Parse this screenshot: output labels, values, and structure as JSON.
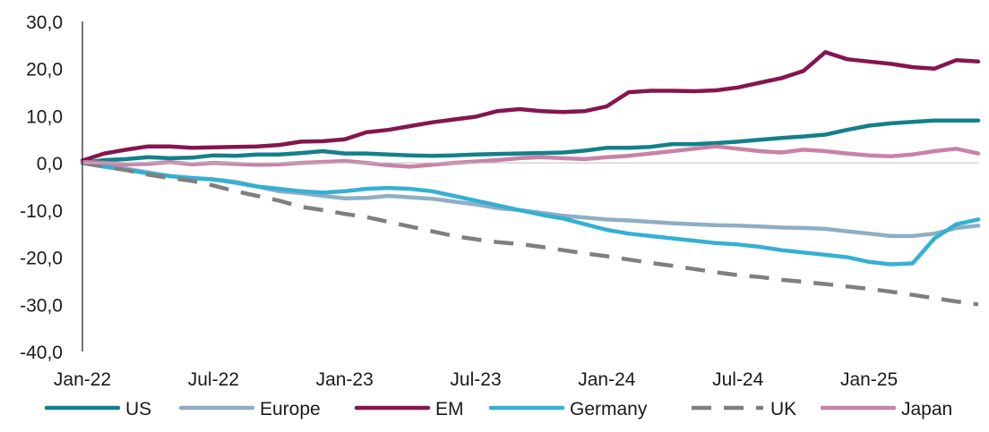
{
  "chart_data": {
    "type": "line",
    "title": "",
    "xlabel": "",
    "ylabel": "",
    "ylim": [
      -40,
      30
    ],
    "yticks": [
      30,
      20,
      10,
      0,
      -10,
      -20,
      -30,
      -40
    ],
    "ytick_labels": [
      "30,0",
      "20,0",
      "10,0",
      "0,0",
      "-10,0",
      "-20,0",
      "-30,0",
      "-40,0"
    ],
    "xlim": [
      0,
      41
    ],
    "xticks": [
      0,
      6,
      12,
      18,
      24,
      30,
      36
    ],
    "xtick_labels": [
      "Jan-22",
      "Jul-22",
      "Jan-23",
      "Jul-23",
      "Jan-24",
      "Jul-24",
      "Jan-25"
    ],
    "legend_position": "bottom",
    "series": [
      {
        "name": "US",
        "color": "#13808a",
        "dash": "solid",
        "points": [
          [
            0,
            0
          ],
          [
            1,
            0.6
          ],
          [
            2,
            0.8
          ],
          [
            3,
            1.2
          ],
          [
            4,
            1.0
          ],
          [
            5,
            1.1
          ],
          [
            6,
            1.6
          ],
          [
            7,
            1.5
          ],
          [
            8,
            1.8
          ],
          [
            9,
            1.8
          ],
          [
            10,
            2.1
          ],
          [
            11,
            2.5
          ],
          [
            12,
            2.0
          ],
          [
            13,
            2.0
          ],
          [
            14,
            1.8
          ],
          [
            15,
            1.6
          ],
          [
            16,
            1.5
          ],
          [
            17,
            1.6
          ],
          [
            18,
            1.8
          ],
          [
            19,
            1.9
          ],
          [
            20,
            2.0
          ],
          [
            21,
            2.1
          ],
          [
            22,
            2.2
          ],
          [
            23,
            2.6
          ],
          [
            24,
            3.2
          ],
          [
            25,
            3.2
          ],
          [
            26,
            3.4
          ],
          [
            27,
            4.0
          ],
          [
            28,
            4.0
          ],
          [
            29,
            4.2
          ],
          [
            30,
            4.5
          ],
          [
            31,
            4.9
          ],
          [
            32,
            5.3
          ],
          [
            33,
            5.6
          ],
          [
            34,
            6.0
          ],
          [
            35,
            7.0
          ],
          [
            36,
            7.9
          ],
          [
            37,
            8.4
          ],
          [
            38,
            8.7
          ],
          [
            39,
            9.0
          ],
          [
            40,
            9.0
          ],
          [
            41,
            9.0
          ]
        ]
      },
      {
        "name": "Europe",
        "color": "#8eaec5",
        "dash": "solid",
        "points": [
          [
            0,
            0
          ],
          [
            1,
            -0.5
          ],
          [
            2,
            -1.2
          ],
          [
            3,
            -2.0
          ],
          [
            4,
            -2.8
          ],
          [
            5,
            -3.2
          ],
          [
            6,
            -3.5
          ],
          [
            7,
            -4.0
          ],
          [
            8,
            -5.0
          ],
          [
            9,
            -6.0
          ],
          [
            10,
            -6.4
          ],
          [
            11,
            -7.0
          ],
          [
            12,
            -7.5
          ],
          [
            13,
            -7.4
          ],
          [
            14,
            -7.0
          ],
          [
            15,
            -7.3
          ],
          [
            16,
            -7.6
          ],
          [
            17,
            -8.2
          ],
          [
            18,
            -8.8
          ],
          [
            19,
            -9.6
          ],
          [
            20,
            -10.0
          ],
          [
            21,
            -10.6
          ],
          [
            22,
            -11.2
          ],
          [
            23,
            -11.6
          ],
          [
            24,
            -12.0
          ],
          [
            25,
            -12.2
          ],
          [
            26,
            -12.5
          ],
          [
            27,
            -12.8
          ],
          [
            28,
            -13.0
          ],
          [
            29,
            -13.2
          ],
          [
            30,
            -13.3
          ],
          [
            31,
            -13.5
          ],
          [
            32,
            -13.7
          ],
          [
            33,
            -13.8
          ],
          [
            34,
            -14.0
          ],
          [
            35,
            -14.5
          ],
          [
            36,
            -15.0
          ],
          [
            37,
            -15.5
          ],
          [
            38,
            -15.5
          ],
          [
            39,
            -15.0
          ],
          [
            40,
            -13.8
          ],
          [
            41,
            -13.3
          ]
        ]
      },
      {
        "name": "EM",
        "color": "#86154f",
        "dash": "solid",
        "points": [
          [
            0,
            0.5
          ],
          [
            1,
            2.0
          ],
          [
            2,
            2.8
          ],
          [
            3,
            3.5
          ],
          [
            4,
            3.5
          ],
          [
            5,
            3.2
          ],
          [
            6,
            3.3
          ],
          [
            7,
            3.4
          ],
          [
            8,
            3.5
          ],
          [
            9,
            3.8
          ],
          [
            10,
            4.5
          ],
          [
            11,
            4.6
          ],
          [
            12,
            5.0
          ],
          [
            13,
            6.5
          ],
          [
            14,
            7.0
          ],
          [
            15,
            7.8
          ],
          [
            16,
            8.6
          ],
          [
            17,
            9.2
          ],
          [
            18,
            9.8
          ],
          [
            19,
            11.0
          ],
          [
            20,
            11.4
          ],
          [
            21,
            11.0
          ],
          [
            22,
            10.8
          ],
          [
            23,
            11.0
          ],
          [
            24,
            12.0
          ],
          [
            25,
            15.0
          ],
          [
            26,
            15.3
          ],
          [
            27,
            15.3
          ],
          [
            28,
            15.2
          ],
          [
            29,
            15.4
          ],
          [
            30,
            16.0
          ],
          [
            31,
            17.0
          ],
          [
            32,
            18.0
          ],
          [
            33,
            19.5
          ],
          [
            34,
            23.5
          ],
          [
            35,
            22.0
          ],
          [
            36,
            21.5
          ],
          [
            37,
            21.0
          ],
          [
            38,
            20.3
          ],
          [
            39,
            20.0
          ],
          [
            40,
            21.8
          ],
          [
            41,
            21.5
          ]
        ]
      },
      {
        "name": "Germany",
        "color": "#34b0d2",
        "dash": "solid",
        "points": [
          [
            0,
            0
          ],
          [
            1,
            -0.8
          ],
          [
            2,
            -1.5
          ],
          [
            3,
            -2.2
          ],
          [
            4,
            -2.8
          ],
          [
            5,
            -3.2
          ],
          [
            6,
            -3.5
          ],
          [
            7,
            -4.2
          ],
          [
            8,
            -5.0
          ],
          [
            9,
            -5.5
          ],
          [
            10,
            -6.0
          ],
          [
            11,
            -6.3
          ],
          [
            12,
            -6.0
          ],
          [
            13,
            -5.5
          ],
          [
            14,
            -5.3
          ],
          [
            15,
            -5.5
          ],
          [
            16,
            -6.0
          ],
          [
            17,
            -7.0
          ],
          [
            18,
            -8.0
          ],
          [
            19,
            -9.0
          ],
          [
            20,
            -10.0
          ],
          [
            21,
            -11.0
          ],
          [
            22,
            -11.8
          ],
          [
            23,
            -13.0
          ],
          [
            24,
            -14.2
          ],
          [
            25,
            -15.0
          ],
          [
            26,
            -15.5
          ],
          [
            27,
            -16.0
          ],
          [
            28,
            -16.5
          ],
          [
            29,
            -17.0
          ],
          [
            30,
            -17.3
          ],
          [
            31,
            -17.8
          ],
          [
            32,
            -18.5
          ],
          [
            33,
            -19.0
          ],
          [
            34,
            -19.5
          ],
          [
            35,
            -20.0
          ],
          [
            36,
            -21.0
          ],
          [
            37,
            -21.5
          ],
          [
            38,
            -21.3
          ],
          [
            39,
            -16.0
          ],
          [
            40,
            -13.0
          ],
          [
            41,
            -12.0
          ]
        ]
      },
      {
        "name": "UK",
        "color": "#7f7f7f",
        "dash": "dashed",
        "points": [
          [
            0,
            0
          ],
          [
            1,
            -0.8
          ],
          [
            2,
            -1.5
          ],
          [
            3,
            -2.5
          ],
          [
            4,
            -3.2
          ],
          [
            5,
            -3.8
          ],
          [
            6,
            -4.8
          ],
          [
            7,
            -6.0
          ],
          [
            8,
            -7.0
          ],
          [
            9,
            -8.0
          ],
          [
            10,
            -9.3
          ],
          [
            11,
            -10.0
          ],
          [
            12,
            -10.8
          ],
          [
            13,
            -11.5
          ],
          [
            14,
            -12.5
          ],
          [
            15,
            -13.5
          ],
          [
            16,
            -14.5
          ],
          [
            17,
            -15.5
          ],
          [
            18,
            -16.2
          ],
          [
            19,
            -16.8
          ],
          [
            20,
            -17.2
          ],
          [
            21,
            -17.8
          ],
          [
            22,
            -18.5
          ],
          [
            23,
            -19.2
          ],
          [
            24,
            -19.8
          ],
          [
            25,
            -20.5
          ],
          [
            26,
            -21.2
          ],
          [
            27,
            -21.8
          ],
          [
            28,
            -22.5
          ],
          [
            29,
            -23.2
          ],
          [
            30,
            -23.8
          ],
          [
            31,
            -24.2
          ],
          [
            32,
            -24.8
          ],
          [
            33,
            -25.2
          ],
          [
            34,
            -25.7
          ],
          [
            35,
            -26.2
          ],
          [
            36,
            -26.7
          ],
          [
            37,
            -27.3
          ],
          [
            38,
            -28.0
          ],
          [
            39,
            -28.7
          ],
          [
            40,
            -29.4
          ],
          [
            41,
            -30.0
          ]
        ]
      },
      {
        "name": "Japan",
        "color": "#c882a8",
        "dash": "solid",
        "points": [
          [
            0,
            0.2
          ],
          [
            1,
            0.0
          ],
          [
            2,
            -0.3
          ],
          [
            3,
            -0.2
          ],
          [
            4,
            0.2
          ],
          [
            5,
            -0.3
          ],
          [
            6,
            0.0
          ],
          [
            7,
            -0.2
          ],
          [
            8,
            -0.4
          ],
          [
            9,
            -0.3
          ],
          [
            10,
            0.0
          ],
          [
            11,
            0.2
          ],
          [
            12,
            0.4
          ],
          [
            13,
            0.0
          ],
          [
            14,
            -0.5
          ],
          [
            15,
            -0.8
          ],
          [
            16,
            -0.4
          ],
          [
            17,
            0.0
          ],
          [
            18,
            0.3
          ],
          [
            19,
            0.6
          ],
          [
            20,
            1.0
          ],
          [
            21,
            1.2
          ],
          [
            22,
            1.0
          ],
          [
            23,
            0.8
          ],
          [
            24,
            1.2
          ],
          [
            25,
            1.5
          ],
          [
            26,
            2.0
          ],
          [
            27,
            2.5
          ],
          [
            28,
            3.0
          ],
          [
            29,
            3.5
          ],
          [
            30,
            3.0
          ],
          [
            31,
            2.5
          ],
          [
            32,
            2.2
          ],
          [
            33,
            2.8
          ],
          [
            34,
            2.5
          ],
          [
            35,
            2.0
          ],
          [
            36,
            1.6
          ],
          [
            37,
            1.4
          ],
          [
            38,
            1.8
          ],
          [
            39,
            2.5
          ],
          [
            40,
            3.0
          ],
          [
            41,
            2.0
          ]
        ]
      }
    ]
  }
}
